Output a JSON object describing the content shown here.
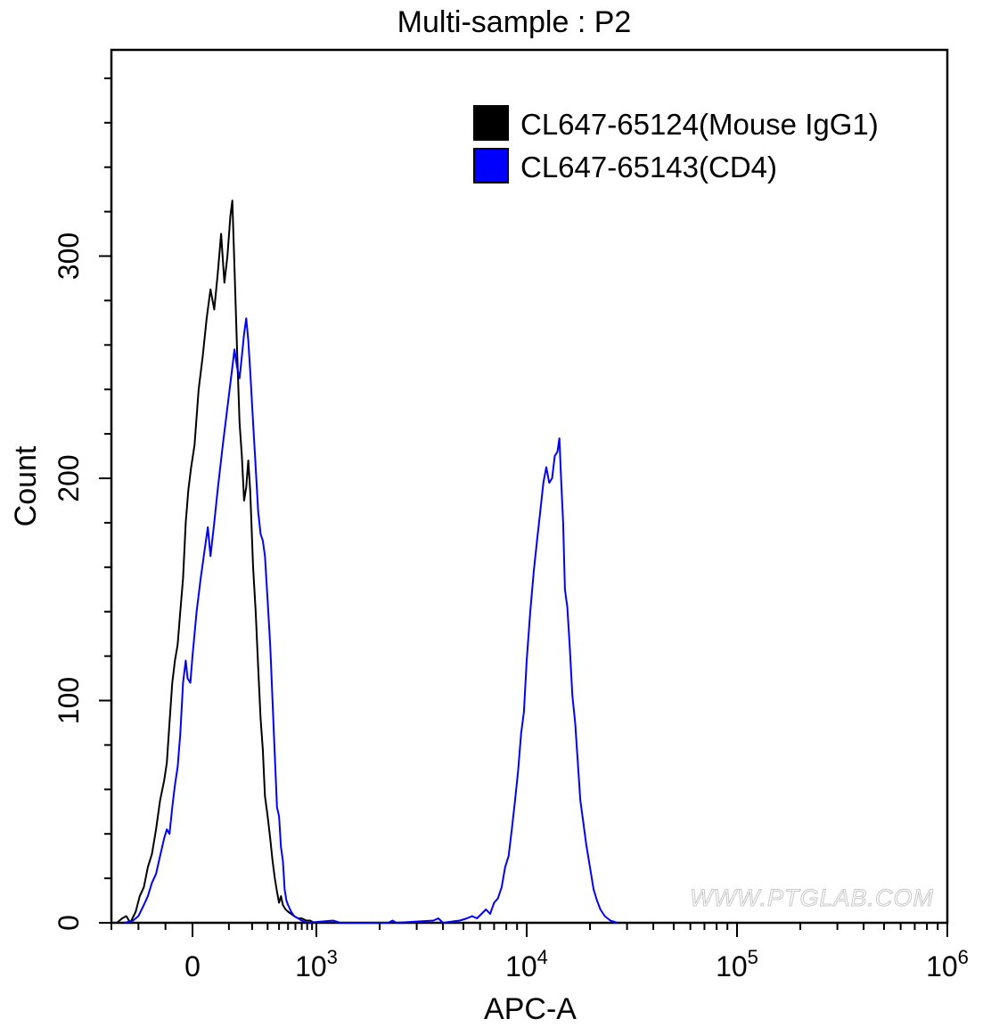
{
  "chart_data": {
    "type": "line",
    "title": "Multi-sample : P2",
    "xlabel": "APC-A",
    "ylabel": "Count",
    "x_scale": "biexponential",
    "xlim": [
      -300,
      1000000
    ],
    "ylim": [
      0,
      400
    ],
    "y_ticks": [
      {
        "value": 0,
        "label": "0"
      },
      {
        "value": 100,
        "label": "100"
      },
      {
        "value": 200,
        "label": "200"
      },
      {
        "value": 300,
        "label": "300"
      }
    ],
    "x_ticks": [
      {
        "value": 0,
        "label": "0",
        "exp": ""
      },
      {
        "value": 1000,
        "label": "10",
        "exp": "3"
      },
      {
        "value": 10000,
        "label": "10",
        "exp": "4"
      },
      {
        "value": 100000,
        "label": "10",
        "exp": "5"
      },
      {
        "value": 1000000,
        "label": "10",
        "exp": "6"
      }
    ],
    "grid": false,
    "legend_position": "top-right",
    "series": [
      {
        "name": "CL647-65124(Mouse IgG1)",
        "color": "#000000",
        "points": [
          [
            -280,
            0
          ],
          [
            -260,
            2
          ],
          [
            -245,
            3
          ],
          [
            -230,
            0
          ],
          [
            -210,
            5
          ],
          [
            -195,
            12
          ],
          [
            -180,
            16
          ],
          [
            -165,
            25
          ],
          [
            -150,
            31
          ],
          [
            -135,
            42
          ],
          [
            -120,
            55
          ],
          [
            -105,
            64
          ],
          [
            -95,
            72
          ],
          [
            -85,
            90
          ],
          [
            -75,
            108
          ],
          [
            -65,
            118
          ],
          [
            -55,
            125
          ],
          [
            -45,
            140
          ],
          [
            -35,
            155
          ],
          [
            -25,
            180
          ],
          [
            -15,
            195
          ],
          [
            -5,
            205
          ],
          [
            5,
            215
          ],
          [
            15,
            240
          ],
          [
            25,
            255
          ],
          [
            35,
            272
          ],
          [
            45,
            285
          ],
          [
            55,
            276
          ],
          [
            65,
            292
          ],
          [
            75,
            310
          ],
          [
            85,
            288
          ],
          [
            95,
            300
          ],
          [
            105,
            318
          ],
          [
            112,
            325
          ],
          [
            120,
            295
          ],
          [
            130,
            258
          ],
          [
            140,
            225
          ],
          [
            150,
            210
          ],
          [
            160,
            190
          ],
          [
            170,
            196
          ],
          [
            180,
            208
          ],
          [
            190,
            194
          ],
          [
            205,
            160
          ],
          [
            220,
            140
          ],
          [
            235,
            115
          ],
          [
            250,
            92
          ],
          [
            265,
            78
          ],
          [
            280,
            57
          ],
          [
            300,
            48
          ],
          [
            320,
            38
          ],
          [
            340,
            28
          ],
          [
            360,
            20
          ],
          [
            380,
            14
          ],
          [
            400,
            9
          ],
          [
            420,
            12
          ],
          [
            440,
            8
          ],
          [
            470,
            6
          ],
          [
            500,
            5
          ],
          [
            540,
            4
          ],
          [
            580,
            3
          ],
          [
            640,
            2
          ],
          [
            700,
            2
          ],
          [
            780,
            1
          ],
          [
            860,
            1
          ],
          [
            950,
            0
          ]
        ]
      },
      {
        "name": "CL647-65143(CD4)",
        "color": "#0000ff",
        "points": [
          [
            -250,
            0
          ],
          [
            -220,
            1
          ],
          [
            -200,
            3
          ],
          [
            -180,
            8
          ],
          [
            -165,
            12
          ],
          [
            -150,
            18
          ],
          [
            -135,
            22
          ],
          [
            -120,
            30
          ],
          [
            -105,
            38
          ],
          [
            -95,
            42
          ],
          [
            -85,
            40
          ],
          [
            -75,
            52
          ],
          [
            -65,
            62
          ],
          [
            -55,
            70
          ],
          [
            -45,
            85
          ],
          [
            -35,
            108
          ],
          [
            -25,
            118
          ],
          [
            -18,
            110
          ],
          [
            -8,
            108
          ],
          [
            0,
            120
          ],
          [
            10,
            140
          ],
          [
            20,
            155
          ],
          [
            30,
            168
          ],
          [
            38,
            178
          ],
          [
            45,
            165
          ],
          [
            55,
            180
          ],
          [
            65,
            195
          ],
          [
            80,
            215
          ],
          [
            95,
            232
          ],
          [
            110,
            248
          ],
          [
            120,
            258
          ],
          [
            130,
            250
          ],
          [
            140,
            245
          ],
          [
            150,
            255
          ],
          [
            160,
            265
          ],
          [
            170,
            272
          ],
          [
            180,
            262
          ],
          [
            190,
            248
          ],
          [
            205,
            225
          ],
          [
            220,
            205
          ],
          [
            235,
            185
          ],
          [
            250,
            175
          ],
          [
            265,
            172
          ],
          [
            280,
            165
          ],
          [
            300,
            145
          ],
          [
            320,
            125
          ],
          [
            340,
            100
          ],
          [
            360,
            75
          ],
          [
            380,
            52
          ],
          [
            400,
            48
          ],
          [
            420,
            34
          ],
          [
            440,
            28
          ],
          [
            460,
            15
          ],
          [
            480,
            10
          ],
          [
            500,
            8
          ],
          [
            540,
            5
          ],
          [
            580,
            3
          ],
          [
            640,
            2
          ],
          [
            700,
            1
          ],
          [
            800,
            0
          ],
          [
            1200,
            1
          ],
          [
            1300,
            0
          ],
          [
            2200,
            0
          ],
          [
            2300,
            1
          ],
          [
            2400,
            0
          ],
          [
            3600,
            1
          ],
          [
            3800,
            2
          ],
          [
            4000,
            0
          ],
          [
            4800,
            1
          ],
          [
            5200,
            2
          ],
          [
            5500,
            3
          ],
          [
            5800,
            2
          ],
          [
            6100,
            4
          ],
          [
            6400,
            6
          ],
          [
            6700,
            4
          ],
          [
            7000,
            9
          ],
          [
            7300,
            11
          ],
          [
            7600,
            16
          ],
          [
            7900,
            25
          ],
          [
            8200,
            30
          ],
          [
            8500,
            42
          ],
          [
            8800,
            55
          ],
          [
            9100,
            68
          ],
          [
            9400,
            85
          ],
          [
            9700,
            95
          ],
          [
            10000,
            118
          ],
          [
            10400,
            140
          ],
          [
            10800,
            158
          ],
          [
            11200,
            172
          ],
          [
            11600,
            185
          ],
          [
            12000,
            198
          ],
          [
            12400,
            205
          ],
          [
            12800,
            198
          ],
          [
            13200,
            200
          ],
          [
            13600,
            210
          ],
          [
            14000,
            212
          ],
          [
            14300,
            218
          ],
          [
            14600,
            198
          ],
          [
            14900,
            180
          ],
          [
            15200,
            150
          ],
          [
            15600,
            142
          ],
          [
            16000,
            125
          ],
          [
            16500,
            102
          ],
          [
            17000,
            90
          ],
          [
            17500,
            72
          ],
          [
            18000,
            55
          ],
          [
            18600,
            45
          ],
          [
            19200,
            35
          ],
          [
            20000,
            25
          ],
          [
            20800,
            15
          ],
          [
            21600,
            10
          ],
          [
            22400,
            6
          ],
          [
            23500,
            3
          ],
          [
            25000,
            1
          ],
          [
            27000,
            0
          ]
        ]
      }
    ]
  },
  "watermark": "WWW.PTGLAB.COM"
}
